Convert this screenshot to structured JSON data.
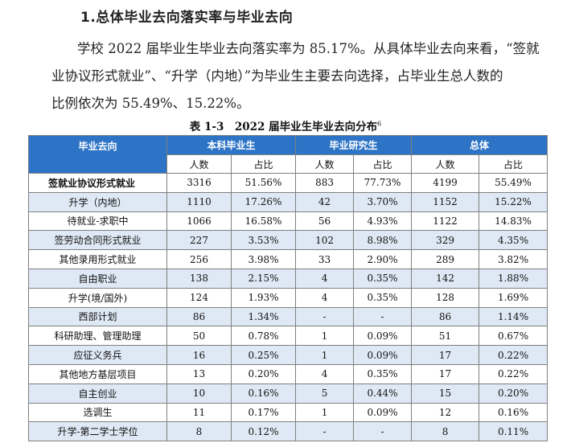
{
  "heading": "1.总体毕业去向落实率与毕业去向",
  "paragraph": {
    "line1": "学校 2022 届毕业生毕业去向落实率为 85.17%。从具体毕业去向来看，“签就",
    "line2": "业协议形式就业”、“升学（内地）”为毕业生主要去向选择，占毕业生总人数的",
    "line3": "比例依次为 55.49%、15.22%。"
  },
  "caption": {
    "text": "表 1-3　2022 届毕业生毕业去向分布",
    "footnote": "6"
  },
  "table": {
    "col_destination": "毕业去向",
    "group_undergrad": "本科毕业生",
    "group_postgrad": "毕业研究生",
    "group_total": "总体",
    "sub_count": "人数",
    "sub_ratio": "占比",
    "rows": [
      {
        "name": "签就业协议形式就业",
        "u_n": "3316",
        "u_p": "51.56%",
        "g_n": "883",
        "g_p": "77.73%",
        "t_n": "4199",
        "t_p": "55.49%"
      },
      {
        "name": "升学（内地）",
        "u_n": "1110",
        "u_p": "17.26%",
        "g_n": "42",
        "g_p": "3.70%",
        "t_n": "1152",
        "t_p": "15.22%"
      },
      {
        "name": "待就业-求职中",
        "u_n": "1066",
        "u_p": "16.58%",
        "g_n": "56",
        "g_p": "4.93%",
        "t_n": "1122",
        "t_p": "14.83%"
      },
      {
        "name": "签劳动合同形式就业",
        "u_n": "227",
        "u_p": "3.53%",
        "g_n": "102",
        "g_p": "8.98%",
        "t_n": "329",
        "t_p": "4.35%"
      },
      {
        "name": "其他录用形式就业",
        "u_n": "256",
        "u_p": "3.98%",
        "g_n": "33",
        "g_p": "2.90%",
        "t_n": "289",
        "t_p": "3.82%"
      },
      {
        "name": "自由职业",
        "u_n": "138",
        "u_p": "2.15%",
        "g_n": "4",
        "g_p": "0.35%",
        "t_n": "142",
        "t_p": "1.88%"
      },
      {
        "name": "升学(境/国外)",
        "u_n": "124",
        "u_p": "1.93%",
        "g_n": "4",
        "g_p": "0.35%",
        "t_n": "128",
        "t_p": "1.69%"
      },
      {
        "name": "西部计划",
        "u_n": "86",
        "u_p": "1.34%",
        "g_n": "-",
        "g_p": "-",
        "t_n": "86",
        "t_p": "1.14%"
      },
      {
        "name": "科研助理、管理助理",
        "u_n": "50",
        "u_p": "0.78%",
        "g_n": "1",
        "g_p": "0.09%",
        "t_n": "51",
        "t_p": "0.67%"
      },
      {
        "name": "应征义务兵",
        "u_n": "16",
        "u_p": "0.25%",
        "g_n": "1",
        "g_p": "0.09%",
        "t_n": "17",
        "t_p": "0.22%"
      },
      {
        "name": "其他地方基层项目",
        "u_n": "13",
        "u_p": "0.20%",
        "g_n": "4",
        "g_p": "0.35%",
        "t_n": "17",
        "t_p": "0.22%"
      },
      {
        "name": "自主创业",
        "u_n": "10",
        "u_p": "0.16%",
        "g_n": "5",
        "g_p": "0.44%",
        "t_n": "15",
        "t_p": "0.20%"
      },
      {
        "name": "选调生",
        "u_n": "11",
        "u_p": "0.17%",
        "g_n": "1",
        "g_p": "0.09%",
        "t_n": "12",
        "t_p": "0.16%"
      },
      {
        "name": "升学-第二学士学位",
        "u_n": "8",
        "u_p": "0.12%",
        "g_n": "-",
        "g_p": "-",
        "t_n": "8",
        "t_p": "0.11%"
      }
    ]
  }
}
